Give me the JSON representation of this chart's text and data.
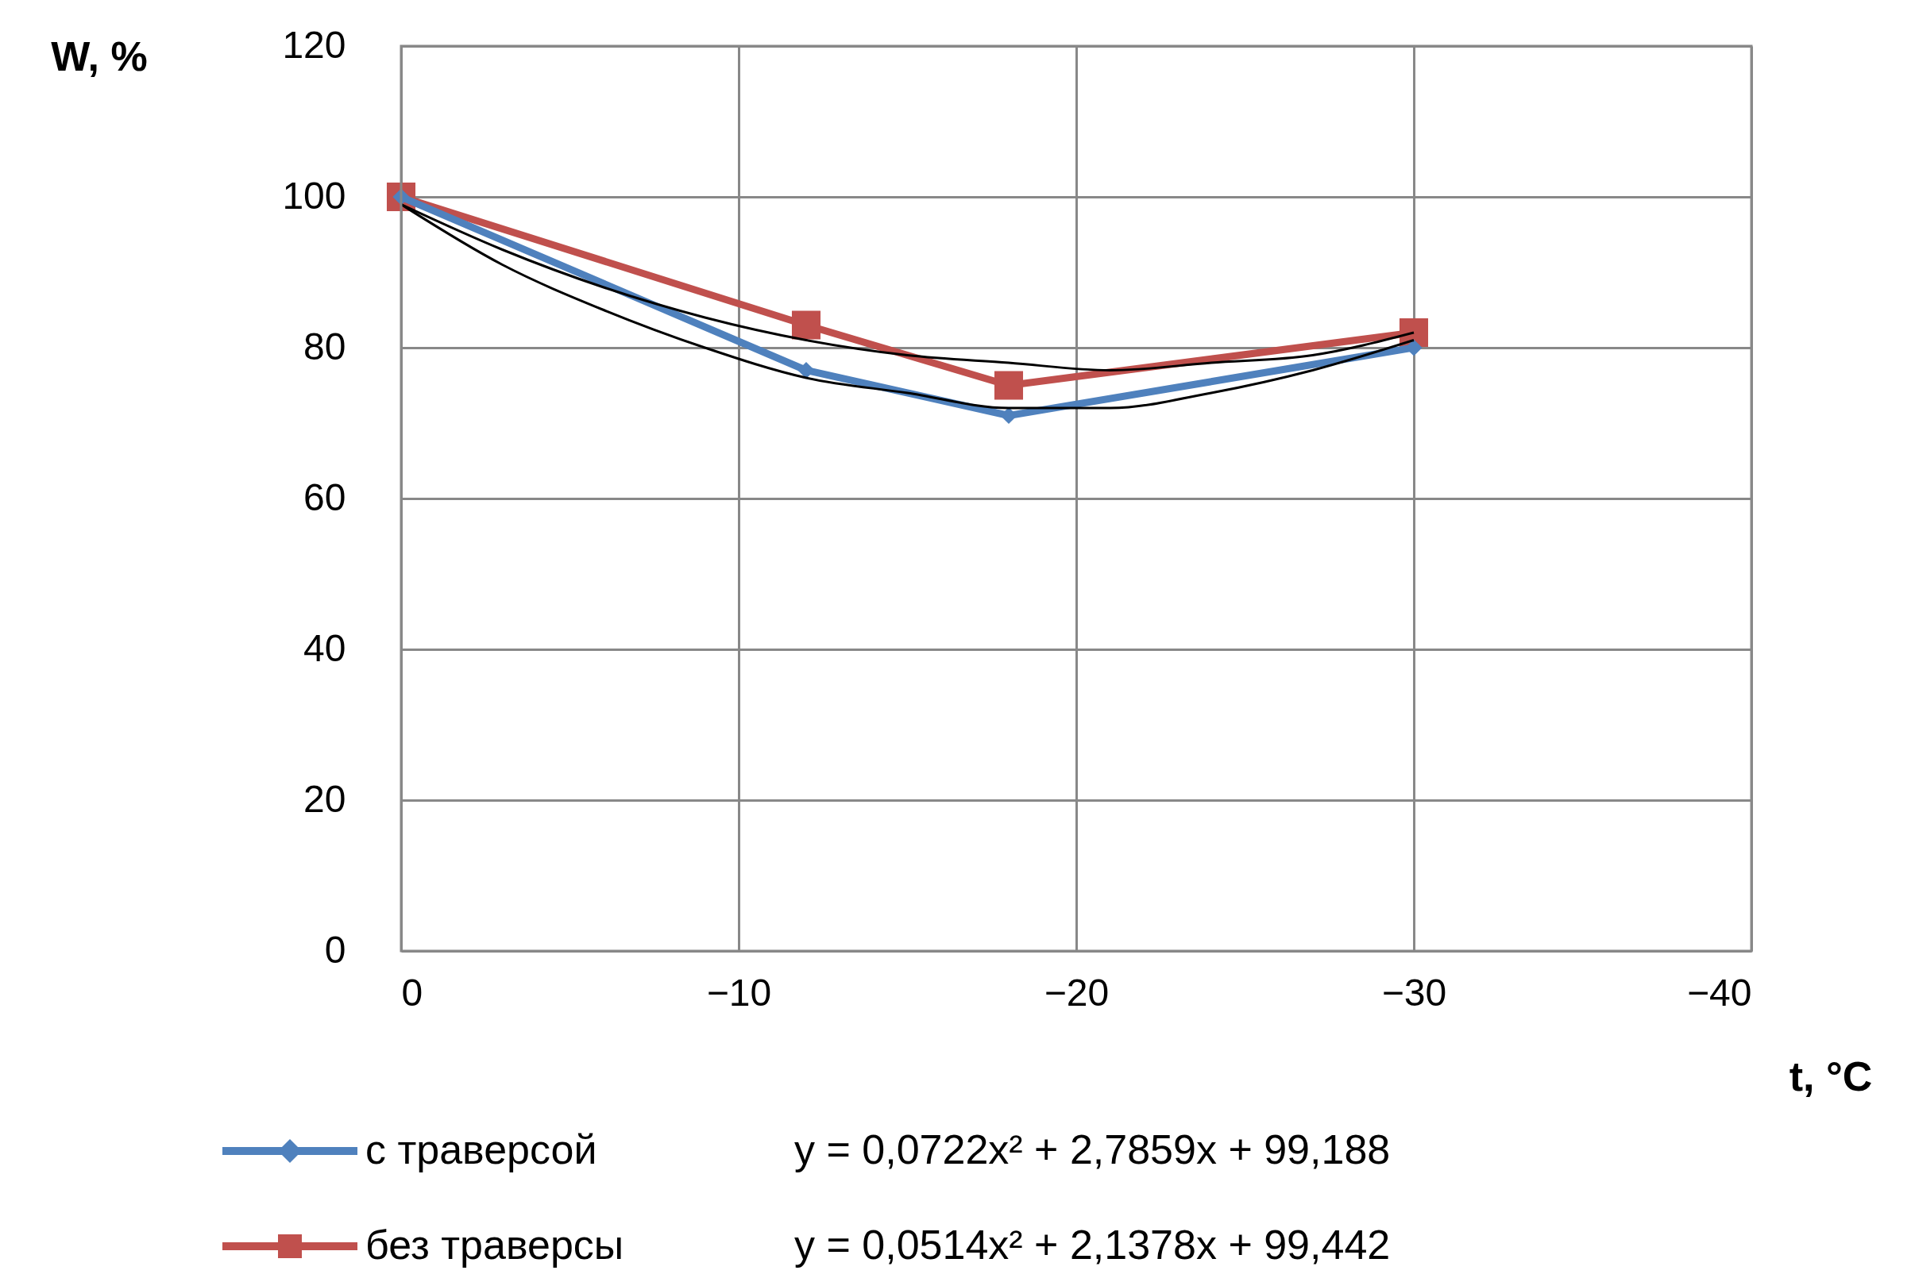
{
  "chart_data": {
    "type": "line",
    "xlabel": "t, °C",
    "ylabel": "W, %",
    "x": [
      0,
      -12,
      -18,
      -30
    ],
    "series": [
      {
        "name": "с траверсой",
        "color": "#4f81bd",
        "marker": "diamond",
        "values": [
          100,
          77,
          71,
          80
        ]
      },
      {
        "name": "без траверсы",
        "color": "#c0504d",
        "marker": "square",
        "values": [
          100,
          83,
          75,
          82
        ]
      },
      {
        "color": "#000000",
        "marker": "none",
        "x": [
          0,
          -3,
          -6,
          -9,
          -12,
          -15,
          -18,
          -21,
          -24,
          -27,
          -30
        ],
        "values": [
          99,
          91,
          85,
          80,
          76,
          74,
          72,
          72,
          74,
          77,
          81
        ]
      },
      {
        "color": "#000000",
        "marker": "none",
        "x": [
          0,
          -3,
          -6,
          -9,
          -12,
          -15,
          -18,
          -21,
          -24,
          -27,
          -30
        ],
        "values": [
          99,
          93,
          88,
          84,
          81,
          79,
          78,
          77,
          78,
          79,
          82
        ]
      }
    ],
    "annotations": [
      "y = 0,0722x² + 2,7859x + 99,188",
      "y = 0,0514x² + 2,1378x + 99,442"
    ],
    "xlim": [
      0,
      -40
    ],
    "xticks": [
      0,
      -10,
      -20,
      -30,
      -40
    ],
    "ylim": [
      0,
      120
    ],
    "yticks": [
      0,
      20,
      40,
      60,
      80,
      100,
      120
    ],
    "grid": true,
    "legend": "bottom",
    "line_style": "solid"
  }
}
